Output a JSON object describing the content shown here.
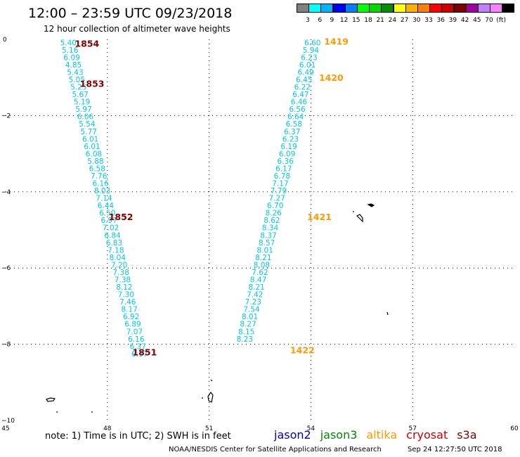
{
  "header": {
    "title": "12:00 – 23:59 UTC 09/23/2018",
    "subtitle": "12 hour collection of altimeter wave heights"
  },
  "scale": {
    "colors": [
      "#808080",
      "#00ffff",
      "#00b4ff",
      "#0000ff",
      "#0080ff",
      "#00ff00",
      "#00d800",
      "#009000",
      "#ffff00",
      "#ffb000",
      "#ff8000",
      "#ff0000",
      "#d00000",
      "#800000",
      "#a000a0",
      "#c080ff",
      "#ff80ff",
      "#000000"
    ],
    "labels": [
      "3",
      "6",
      "9",
      "12",
      "15",
      "18",
      "21",
      "24",
      "27",
      "30",
      "33",
      "36",
      "39",
      "42",
      "45",
      "70",
      "(ft)"
    ]
  },
  "axes": {
    "x_ticks": [
      "45",
      "48",
      "51",
      "54",
      "57",
      "60"
    ],
    "y_ticks": [
      "0",
      "−2",
      "−4",
      "−6",
      "−8",
      "−10"
    ]
  },
  "passes": [
    {
      "id": "1854",
      "color": "#800000",
      "lat": -0.1,
      "lon": 47.4
    },
    {
      "id": "1853",
      "color": "#800000",
      "lat": -1.15,
      "lon": 47.55
    },
    {
      "id": "1852",
      "color": "#800000",
      "lat": -4.65,
      "lon": 48.4
    },
    {
      "id": "1851",
      "color": "#800000",
      "lat": -8.2,
      "lon": 49.1
    },
    {
      "id": "1419",
      "color": "#ff9900",
      "lat": -0.05,
      "lon": 54.75
    },
    {
      "id": "1420",
      "color": "#ff9900",
      "lat": -1.0,
      "lon": 54.6
    },
    {
      "id": "1421",
      "color": "#ff9900",
      "lat": -4.65,
      "lon": 54.25
    },
    {
      "id": "1422",
      "color": "#ff9900",
      "lat": -8.15,
      "lon": 53.75
    }
  ],
  "tracks": [
    {
      "color": "#00c8e8",
      "lon_start": 46.85,
      "lon_step": 0.05,
      "lat_start": -0.08,
      "lat_step": -0.1944,
      "values": [
        "5.40",
        "5.16",
        "6.09",
        "4.85",
        "5.43",
        "5.05",
        "5.25",
        "5.67",
        "5.19",
        "5.97",
        "6.06",
        "5.54",
        "5.77",
        "6.01",
        "6.01",
        "6.08",
        "5.88",
        "6.58",
        "7.76",
        "6.16",
        "8.03",
        "7.14",
        "6.44",
        "6.50",
        "6.97",
        "7.02",
        "6.84",
        "6.83",
        "7.18",
        "8.04",
        "7.20",
        "7.38",
        "7.38",
        "8.12",
        "7.30",
        "7.46",
        "8.17",
        "6.92",
        "6.89",
        "7.07",
        "6.16",
        "6.37",
        "6.37"
      ]
    },
    {
      "color": "#00c8e8",
      "lon_start": 54.05,
      "lon_step": -0.05,
      "lat_start": -0.08,
      "lat_step": -0.1944,
      "values": [
        "6.60",
        "5.94",
        "6.23",
        "6.01",
        "6.49",
        "6.45",
        "6.22",
        "6.47",
        "6.46",
        "6.56",
        "6.64",
        "6.58",
        "6.37",
        "6.23",
        "6.19",
        "6.09",
        "6.36",
        "6.17",
        "6.78",
        "7.17",
        "7.79",
        "7.27",
        "6.70",
        "8.26",
        "8.62",
        "8.34",
        "8.37",
        "8.57",
        "8.01",
        "8.21",
        "8.08",
        "7.62",
        "8.47",
        "8.21",
        "7.42",
        "7.23",
        "7.54",
        "8.01",
        "8.27",
        "8.15",
        "8.23"
      ]
    }
  ],
  "footer": {
    "note": "note:  1) Time is in UTC;  2) SWH is in feet",
    "credit": "NOAA/NESDIS Center for Satellite Applications and Research",
    "timestamp": "Sep 24 12:27:50 UTC 2018"
  },
  "satellites": [
    {
      "name": "jason2",
      "color": "#0000cc"
    },
    {
      "name": "jason3",
      "color": "#008800"
    },
    {
      "name": "altika",
      "color": "#ff9900"
    },
    {
      "name": "cryosat",
      "color": "#cc0000"
    },
    {
      "name": "s3a",
      "color": "#800000"
    }
  ]
}
